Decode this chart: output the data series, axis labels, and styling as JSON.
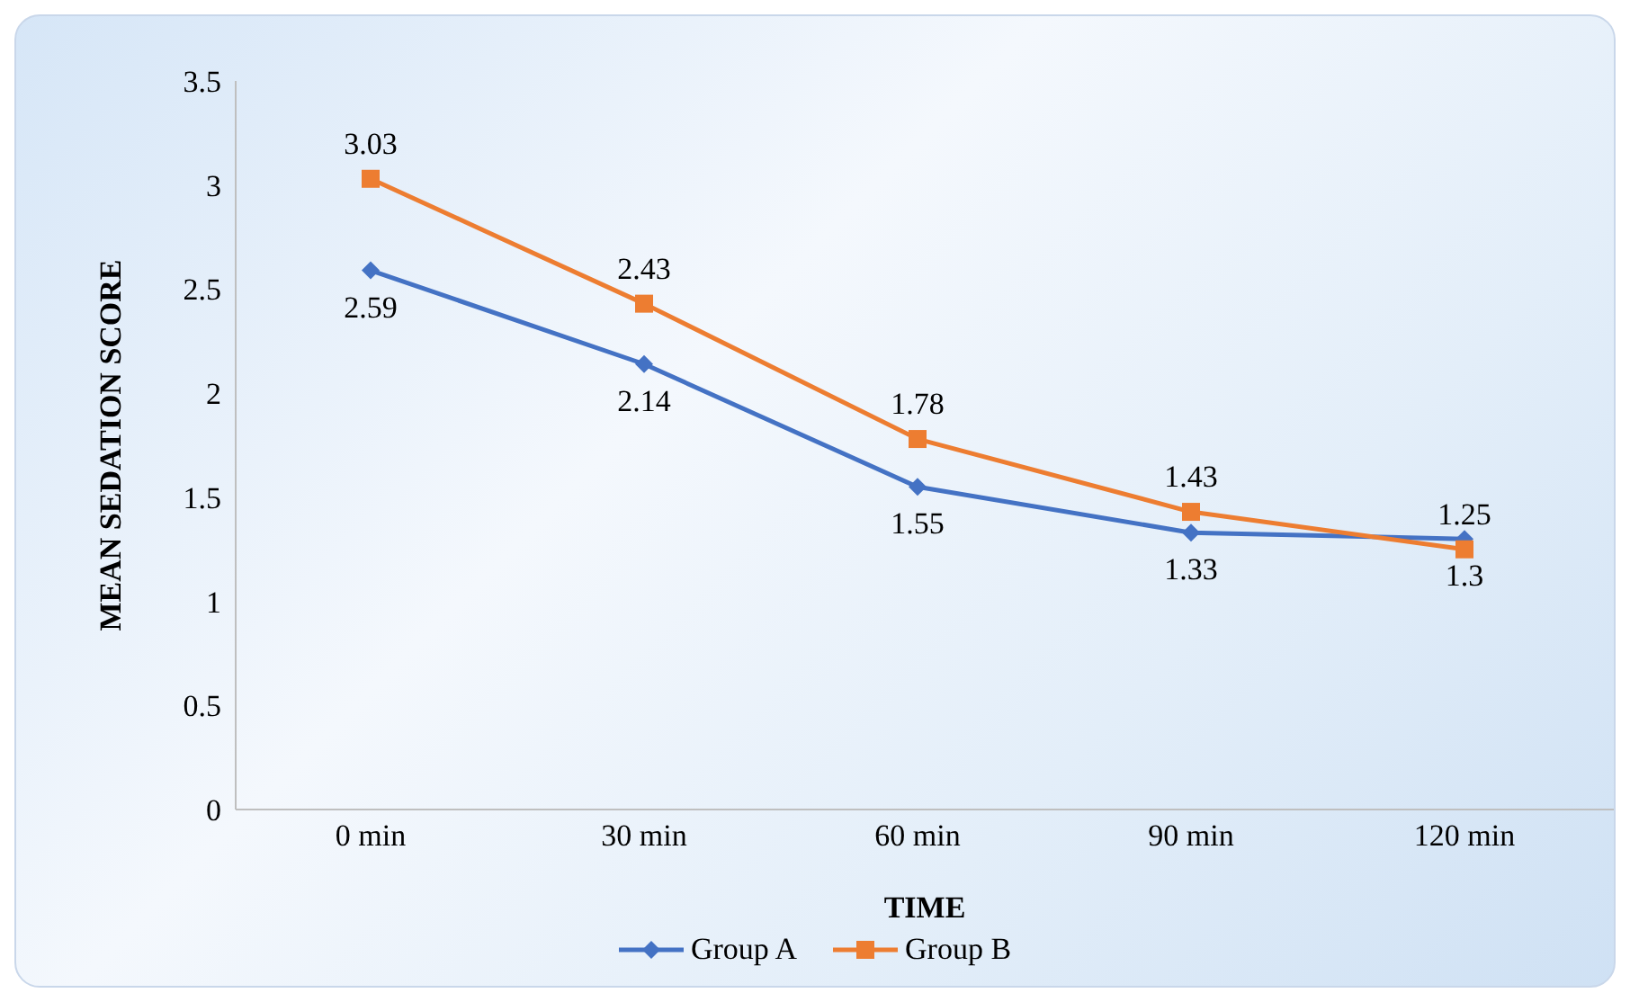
{
  "chart_data": {
    "type": "line",
    "xlabel": "TIME",
    "ylabel": "MEAN  SEDATION SCORE",
    "categories": [
      "0 min",
      "30 min",
      "60 min",
      "90 min",
      "120 min"
    ],
    "series": [
      {
        "name": "Group A",
        "color": "#4472c4",
        "marker": "diamond",
        "values": [
          2.59,
          2.14,
          1.55,
          1.33,
          1.3
        ]
      },
      {
        "name": "Group B",
        "color": "#ed7d31",
        "marker": "square",
        "values": [
          3.03,
          2.43,
          1.78,
          1.43,
          1.25
        ]
      }
    ],
    "ylim": [
      0,
      3.5
    ],
    "yticks": [
      0,
      0.5,
      1,
      1.5,
      2,
      2.5,
      3,
      3.5
    ],
    "grid": false,
    "legend": "bottom",
    "data_labels": true
  }
}
